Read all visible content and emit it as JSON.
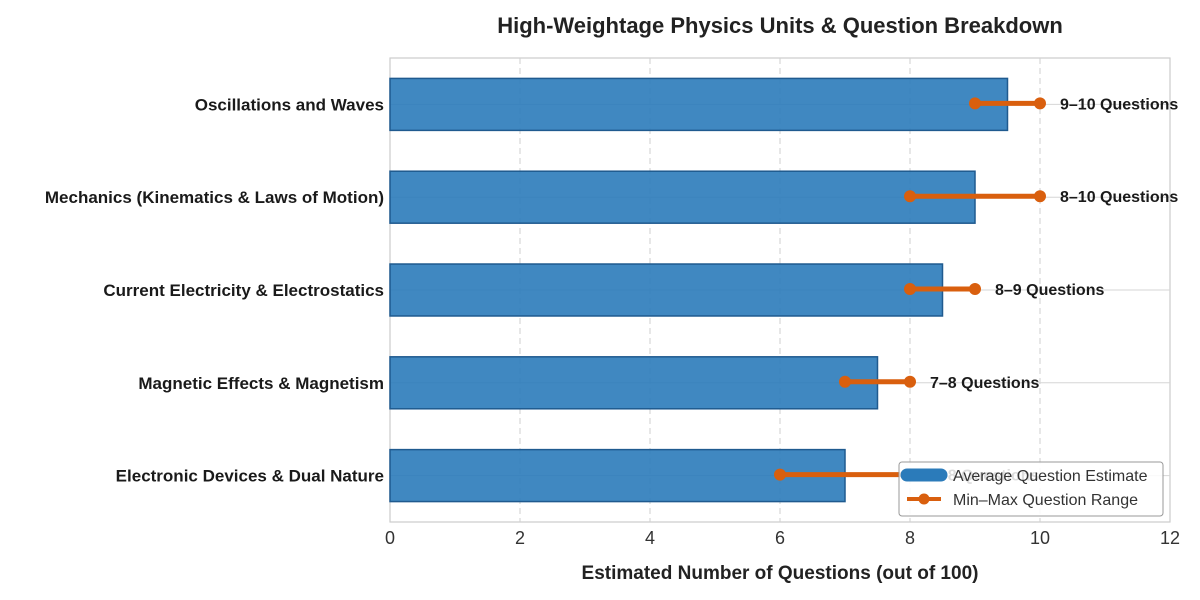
{
  "chart_data": {
    "type": "bar",
    "orientation": "horizontal",
    "title": "High-Weightage Physics Units & Question Breakdown",
    "xlabel": "Estimated Number of Questions (out of 100)",
    "ylabel": "",
    "xlim": [
      0,
      12
    ],
    "xticks": [
      0,
      2,
      4,
      6,
      8,
      10,
      12
    ],
    "grid": true,
    "legend_position": "bottom-right",
    "categories": [
      "Oscillations and Waves",
      "Mechanics (Kinematics & Laws of Motion)",
      "Current Electricity & Electrostatics",
      "Magnetic Effects & Magnetism",
      "Electronic Devices & Dual Nature"
    ],
    "series": [
      {
        "name": "Average Question Estimate",
        "type": "bar",
        "color": "#2b7bba",
        "values": [
          9.5,
          9,
          8.5,
          7.5,
          7
        ]
      },
      {
        "name": "Min–Max Question Range",
        "type": "range",
        "color": "#d95f0e",
        "min": [
          9,
          8,
          8,
          7,
          6
        ],
        "max": [
          10,
          10,
          9,
          8,
          8
        ]
      }
    ],
    "range_labels": [
      "9–10 Questions",
      "8–10 Questions",
      "8–9 Questions",
      "7–8 Questions",
      "6–8 Questions"
    ]
  }
}
